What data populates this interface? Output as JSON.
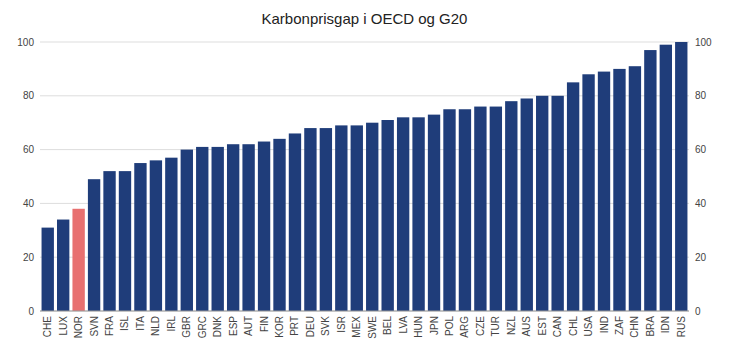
{
  "chart_data": {
    "type": "bar",
    "title": "Karbonprisgap i OECD og G20",
    "categories": [
      "CHE",
      "LUX",
      "NOR",
      "SVN",
      "FRA",
      "ISL",
      "ITA",
      "NLD",
      "IRL",
      "GBR",
      "GRC",
      "DNK",
      "ESP",
      "AUT",
      "FIN",
      "KOR",
      "PRT",
      "DEU",
      "SVK",
      "ISR",
      "MEX",
      "SWE",
      "BEL",
      "LVA",
      "HUN",
      "JPN",
      "POL",
      "ARG",
      "CZE",
      "TUR",
      "NZL",
      "AUS",
      "EST",
      "CAN",
      "CHL",
      "USA",
      "IND",
      "ZAF",
      "CHN",
      "BRA",
      "IDN",
      "RUS"
    ],
    "values": [
      31,
      34,
      38,
      49,
      52,
      52,
      55,
      56,
      57,
      60,
      61,
      61,
      62,
      62,
      63,
      64,
      66,
      68,
      68,
      69,
      69,
      70,
      71,
      72,
      72,
      73,
      75,
      75,
      76,
      76,
      78,
      79,
      80,
      80,
      85,
      88,
      89,
      90,
      91,
      97,
      99,
      100
    ],
    "colors": [
      "#1f3d7a",
      "#1f3d7a",
      "#e87070",
      "#1f3d7a",
      "#1f3d7a",
      "#1f3d7a",
      "#1f3d7a",
      "#1f3d7a",
      "#1f3d7a",
      "#1f3d7a",
      "#1f3d7a",
      "#1f3d7a",
      "#1f3d7a",
      "#1f3d7a",
      "#1f3d7a",
      "#1f3d7a",
      "#1f3d7a",
      "#1f3d7a",
      "#1f3d7a",
      "#1f3d7a",
      "#1f3d7a",
      "#1f3d7a",
      "#1f3d7a",
      "#1f3d7a",
      "#1f3d7a",
      "#1f3d7a",
      "#1f3d7a",
      "#1f3d7a",
      "#1f3d7a",
      "#1f3d7a",
      "#1f3d7a",
      "#1f3d7a",
      "#1f3d7a",
      "#1f3d7a",
      "#1f3d7a",
      "#1f3d7a",
      "#1f3d7a",
      "#1f3d7a",
      "#1f3d7a",
      "#1f3d7a",
      "#1f3d7a",
      "#1f3d7a"
    ],
    "ylim": [
      0,
      100
    ],
    "yticks": [
      0,
      20,
      40,
      60,
      80,
      100
    ],
    "y2lim": [
      0,
      100
    ],
    "y2ticks": [
      0,
      20,
      40,
      60,
      80,
      100
    ],
    "grid": true
  }
}
